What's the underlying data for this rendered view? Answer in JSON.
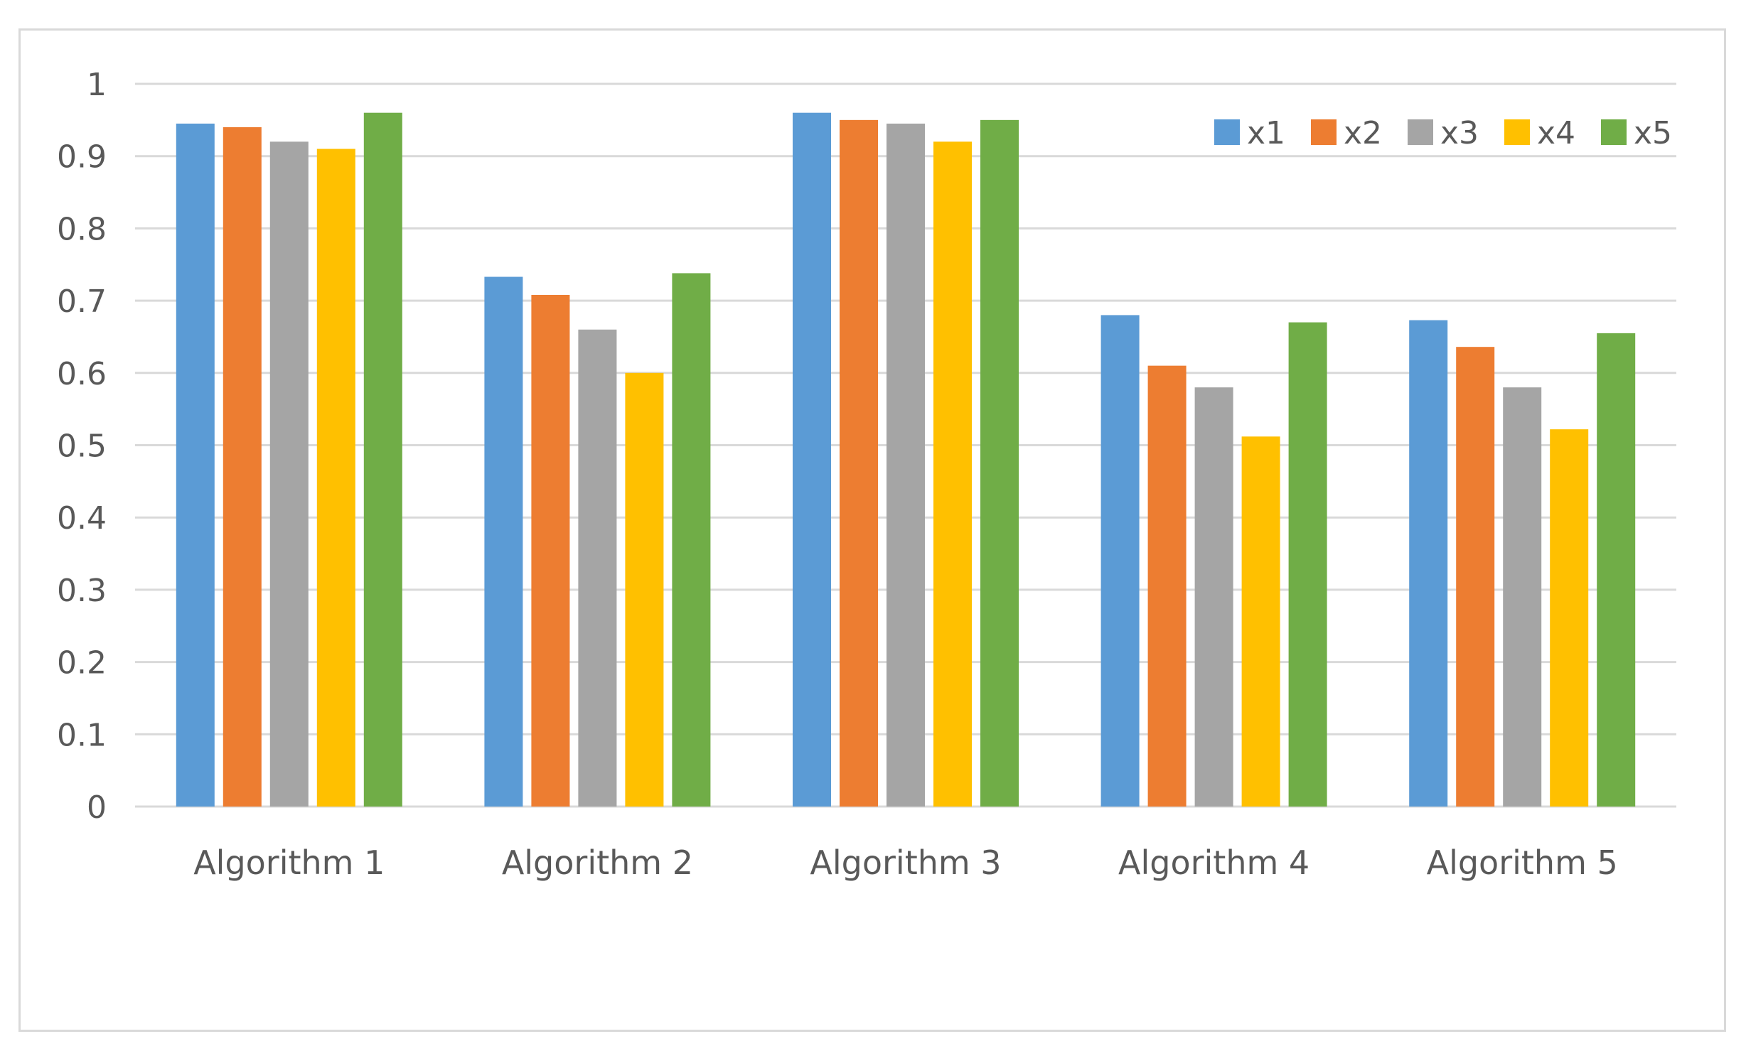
{
  "chart_data": {
    "type": "bar",
    "title": "",
    "xlabel": "",
    "ylabel": "",
    "categories": [
      "Algorithm 1",
      "Algorithm 2",
      "Algorithm 3",
      "Algorithm 4",
      "Algorithm 5"
    ],
    "series": [
      {
        "name": "x1",
        "color": "#5B9BD5",
        "values": [
          0.945,
          0.733,
          0.96,
          0.68,
          0.673
        ]
      },
      {
        "name": "x2",
        "color": "#ED7D31",
        "values": [
          0.94,
          0.708,
          0.95,
          0.61,
          0.636
        ]
      },
      {
        "name": "x3",
        "color": "#A5A5A5",
        "values": [
          0.92,
          0.66,
          0.945,
          0.58,
          0.58
        ]
      },
      {
        "name": "x4",
        "color": "#FFC000",
        "values": [
          0.91,
          0.6,
          0.92,
          0.512,
          0.522
        ]
      },
      {
        "name": "x5",
        "color": "#70AD47",
        "values": [
          0.96,
          0.738,
          0.95,
          0.67,
          0.655
        ]
      }
    ],
    "ylim": [
      0,
      1
    ],
    "yticks": [
      0,
      0.1,
      0.2,
      0.3,
      0.4,
      0.5,
      0.6,
      0.7,
      0.8,
      0.9,
      1
    ],
    "ytick_labels": [
      "0",
      "0.1",
      "0.2",
      "0.3",
      "0.4",
      "0.5",
      "0.6",
      "0.7",
      "0.8",
      "0.9",
      "1"
    ],
    "grid": true,
    "gridline_color": "#d9d9d9",
    "legend_position": "top-right"
  }
}
